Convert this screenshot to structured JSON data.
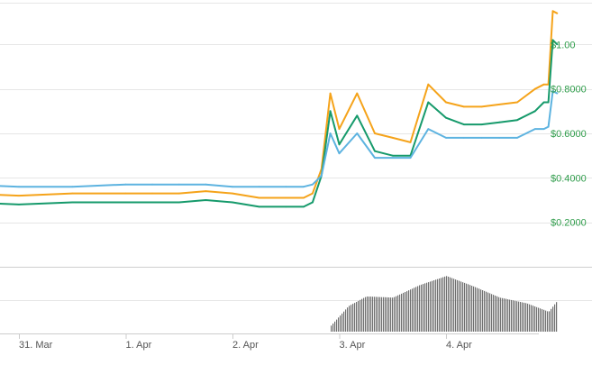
{
  "chart_data": {
    "type": "line",
    "x_ticks": [
      "31. Mar",
      "1. Apr",
      "2. Apr",
      "3. Apr",
      "4. Apr"
    ],
    "y_ticks": [
      "$0.2000",
      "$0.4000",
      "$0.6000",
      "$0.8000",
      "$1.00"
    ],
    "ylim": [
      0.0,
      1.2
    ],
    "grid": true,
    "legend": "none",
    "colors": {
      "orange_series": "#f5a31a",
      "green_series": "#169a6b",
      "blue_series": "#5db3e0",
      "volume": "#707070",
      "tick_text": "#2e9c4a",
      "grid": "#e6e6e6"
    },
    "x": [
      "30 Mar 12:00",
      "31 Mar 00:00",
      "31 Mar 12:00",
      "1 Apr 00:00",
      "1 Apr 06:00",
      "1 Apr 12:00",
      "1 Apr 18:00",
      "2 Apr 00:00",
      "2 Apr 06:00",
      "2 Apr 12:00",
      "2 Apr 16:00",
      "2 Apr 18:00",
      "2 Apr 20:00",
      "2 Apr 22:00",
      "3 Apr 00:00",
      "3 Apr 04:00",
      "3 Apr 08:00",
      "3 Apr 12:00",
      "3 Apr 16:00",
      "3 Apr 20:00",
      "4 Apr 00:00",
      "4 Apr 04:00",
      "4 Apr 08:00",
      "4 Apr 12:00",
      "4 Apr 16:00",
      "4 Apr 20:00",
      "4 Apr 22:00",
      "4 Apr 23:00",
      "5 Apr 00:00",
      "5 Apr 01:00"
    ],
    "series": [
      {
        "color": "#f5a31a",
        "values": [
          0.33,
          0.32,
          0.33,
          0.33,
          0.33,
          0.33,
          0.34,
          0.33,
          0.31,
          0.31,
          0.31,
          0.33,
          0.44,
          0.78,
          0.62,
          0.78,
          0.6,
          0.58,
          0.56,
          0.82,
          0.74,
          0.72,
          0.72,
          0.73,
          0.74,
          0.8,
          0.82,
          0.82,
          1.15,
          1.14
        ]
      },
      {
        "color": "#169a6b",
        "values": [
          0.29,
          0.28,
          0.29,
          0.29,
          0.29,
          0.29,
          0.3,
          0.29,
          0.27,
          0.27,
          0.27,
          0.29,
          0.41,
          0.7,
          0.55,
          0.68,
          0.52,
          0.5,
          0.5,
          0.74,
          0.67,
          0.64,
          0.64,
          0.65,
          0.66,
          0.7,
          0.74,
          0.74,
          1.02,
          1.0
        ]
      },
      {
        "color": "#5db3e0",
        "values": [
          0.37,
          0.36,
          0.36,
          0.37,
          0.37,
          0.37,
          0.37,
          0.36,
          0.36,
          0.36,
          0.36,
          0.37,
          0.41,
          0.6,
          0.51,
          0.6,
          0.49,
          0.49,
          0.49,
          0.62,
          0.58,
          0.58,
          0.58,
          0.58,
          0.58,
          0.62,
          0.62,
          0.63,
          0.79,
          0.78
        ]
      }
    ],
    "volume": {
      "color": "#707070",
      "x": [
        "2 Apr 22:00",
        "3 Apr 02:00",
        "3 Apr 06:00",
        "3 Apr 12:00",
        "3 Apr 18:00",
        "4 Apr 00:00",
        "4 Apr 06:00",
        "4 Apr 12:00",
        "4 Apr 18:00",
        "4 Apr 23:00",
        "5 Apr 01:00"
      ],
      "values": [
        0.1,
        0.45,
        0.62,
        0.6,
        0.82,
        0.98,
        0.8,
        0.6,
        0.5,
        0.35,
        0.55
      ]
    }
  }
}
